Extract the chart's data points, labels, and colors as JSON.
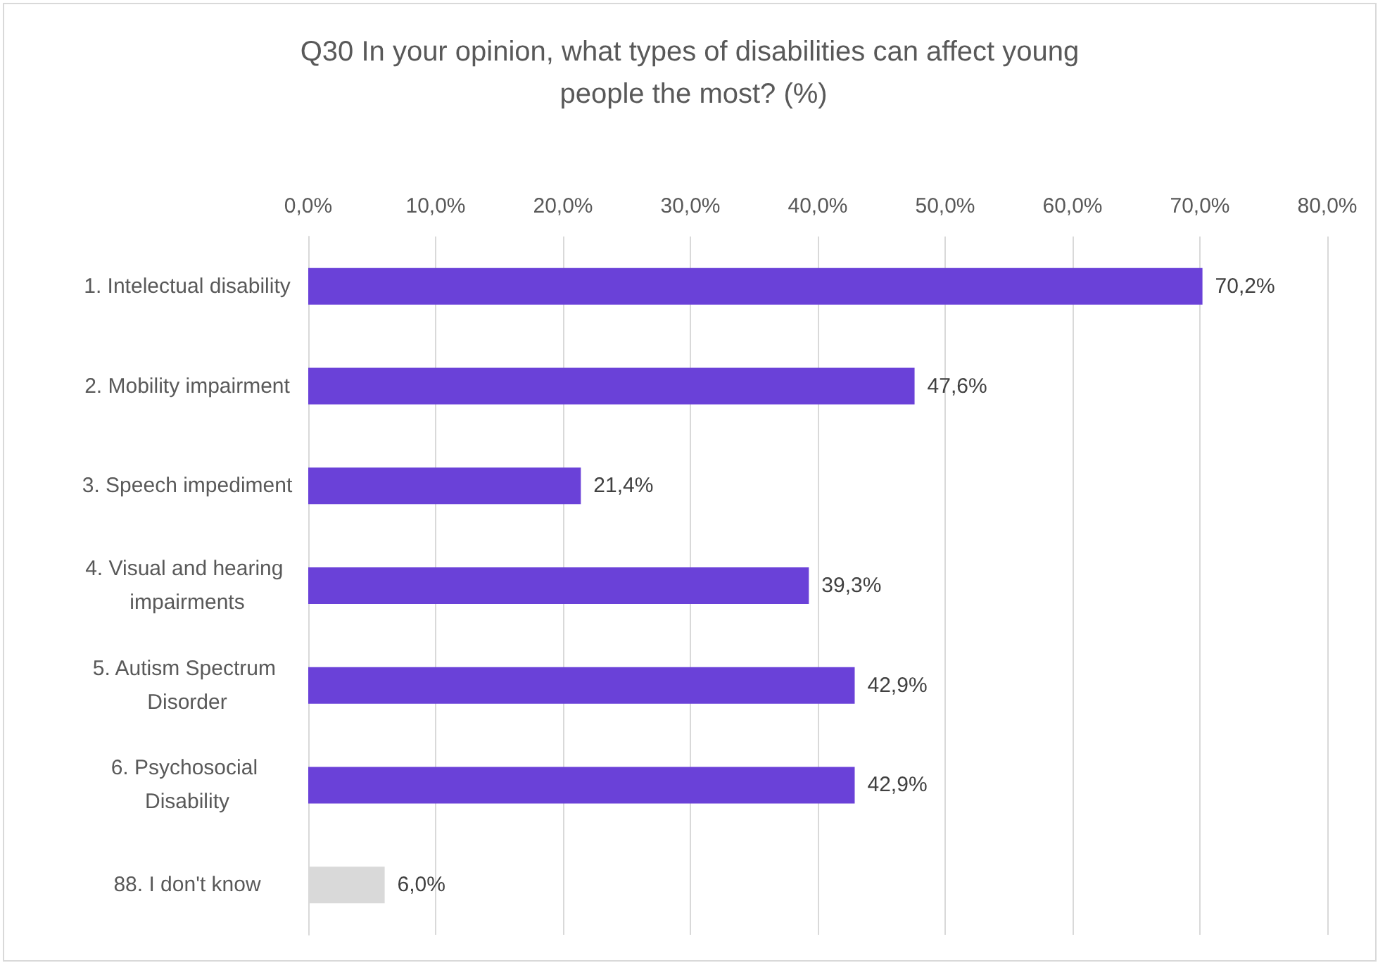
{
  "chart_data": {
    "type": "bar",
    "orientation": "horizontal",
    "title": "Q30 In your opinion, what types of disabilities can affect young people the most? (%)",
    "categories": [
      "1. Intelectual disability",
      "2. Mobility impairment",
      "3. Speech impediment",
      "4. Visual and hearing impairments",
      "5. Autism Spectrum Disorder",
      "6. Psychosocial Disability",
      "88. I don't know"
    ],
    "values": [
      70.2,
      47.6,
      21.4,
      39.3,
      42.9,
      42.9,
      6.0
    ],
    "value_labels": [
      "70,2%",
      "47,6%",
      "21,4%",
      "39,3%",
      "42,9%",
      "42,9%",
      "6,0%"
    ],
    "colors": [
      "#6a41d8",
      "#6a41d8",
      "#6a41d8",
      "#6a41d8",
      "#6a41d8",
      "#6a41d8",
      "#d9d9d9"
    ],
    "xlim": [
      0,
      80
    ],
    "xticks": [
      {
        "value": 0,
        "label": "0,0%"
      },
      {
        "value": 10,
        "label": "10,0%"
      },
      {
        "value": 20,
        "label": "20,0%"
      },
      {
        "value": 30,
        "label": "30,0%"
      },
      {
        "value": 40,
        "label": "40,0%"
      },
      {
        "value": 50,
        "label": "50,0%"
      },
      {
        "value": 60,
        "label": "60,0%"
      },
      {
        "value": 70,
        "label": "70,0%"
      },
      {
        "value": 80,
        "label": "80,0%"
      }
    ],
    "grid": "x"
  }
}
